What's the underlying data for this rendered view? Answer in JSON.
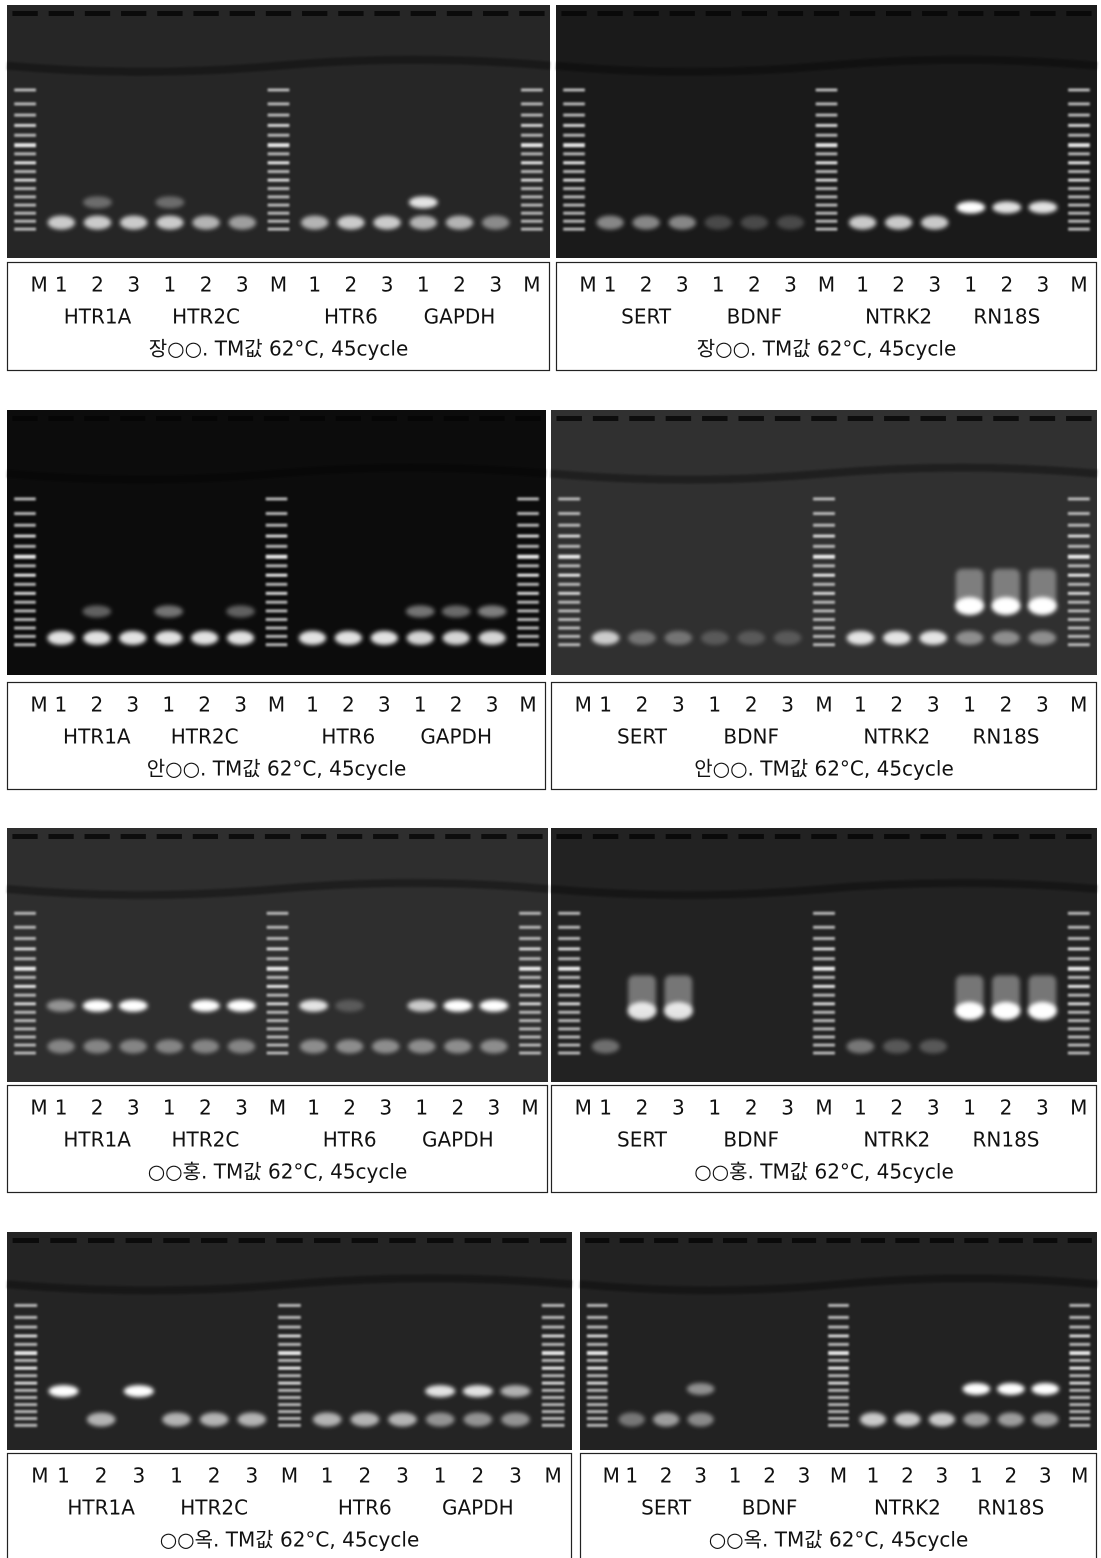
{
  "panels": [
    {
      "lanes": [
        "M",
        "1",
        "2",
        "3",
        "1",
        "2",
        "3",
        "M",
        "1",
        "2",
        "3",
        "1",
        "2",
        "3",
        "M"
      ],
      "genes": [
        "HTR1A",
        "HTR2C",
        "HTR6",
        "GAPDH"
      ],
      "caption": "장○○. TM값 62°C, 45cycle"
    },
    {
      "lanes": [
        "M",
        "1",
        "2",
        "3",
        "1",
        "2",
        "3",
        "M",
        "1",
        "2",
        "3",
        "1",
        "2",
        "3",
        "M"
      ],
      "genes": [
        "SERT",
        "BDNF",
        "NTRK2",
        "RN18S"
      ],
      "caption": "장○○. TM값 62°C, 45cycle"
    },
    {
      "lanes": [
        "M",
        "1",
        "2",
        "3",
        "1",
        "2",
        "3",
        "M",
        "1",
        "2",
        "3",
        "1",
        "2",
        "3",
        "M"
      ],
      "genes": [
        "HTR1A",
        "HTR2C",
        "HTR6",
        "GAPDH"
      ],
      "caption": "안○○. TM값 62°C, 45cycle"
    },
    {
      "lanes": [
        "M",
        "1",
        "2",
        "3",
        "1",
        "2",
        "3",
        "M",
        "1",
        "2",
        "3",
        "1",
        "2",
        "3",
        "M"
      ],
      "genes": [
        "SERT",
        "BDNF",
        "NTRK2",
        "RN18S"
      ],
      "caption": "안○○. TM값 62°C, 45cycle"
    },
    {
      "lanes": [
        "M",
        "1",
        "2",
        "3",
        "1",
        "2",
        "3",
        "M",
        "1",
        "2",
        "3",
        "1",
        "2",
        "3",
        "M"
      ],
      "genes": [
        "HTR1A",
        "HTR2C",
        "HTR6",
        "GAPDH"
      ],
      "caption": "○○홍. TM값 62°C, 45cycle"
    },
    {
      "lanes": [
        "M",
        "1",
        "2",
        "3",
        "1",
        "2",
        "3",
        "M",
        "1",
        "2",
        "3",
        "1",
        "2",
        "3",
        "M"
      ],
      "genes": [
        "SERT",
        "BDNF",
        "NTRK2",
        "RN18S"
      ],
      "caption": "○○홍. TM값 62°C, 45cycle"
    },
    {
      "lanes": [
        "M",
        "1",
        "2",
        "3",
        "1",
        "2",
        "3",
        "M",
        "1",
        "2",
        "3",
        "1",
        "2",
        "3",
        "M"
      ],
      "genes": [
        "HTR1A",
        "HTR2C",
        "HTR6",
        "GAPDH"
      ],
      "caption": "○○옥. TM값 62°C, 45cycle"
    },
    {
      "lanes": [
        "M",
        "1",
        "2",
        "3",
        "1",
        "2",
        "3",
        "M",
        "1",
        "2",
        "3",
        "1",
        "2",
        "3",
        "M"
      ],
      "genes": [
        "SERT",
        "BDNF",
        "NTRK2",
        "RN18S"
      ],
      "caption": "○○옥. TM값 62°C, 45cycle"
    }
  ]
}
